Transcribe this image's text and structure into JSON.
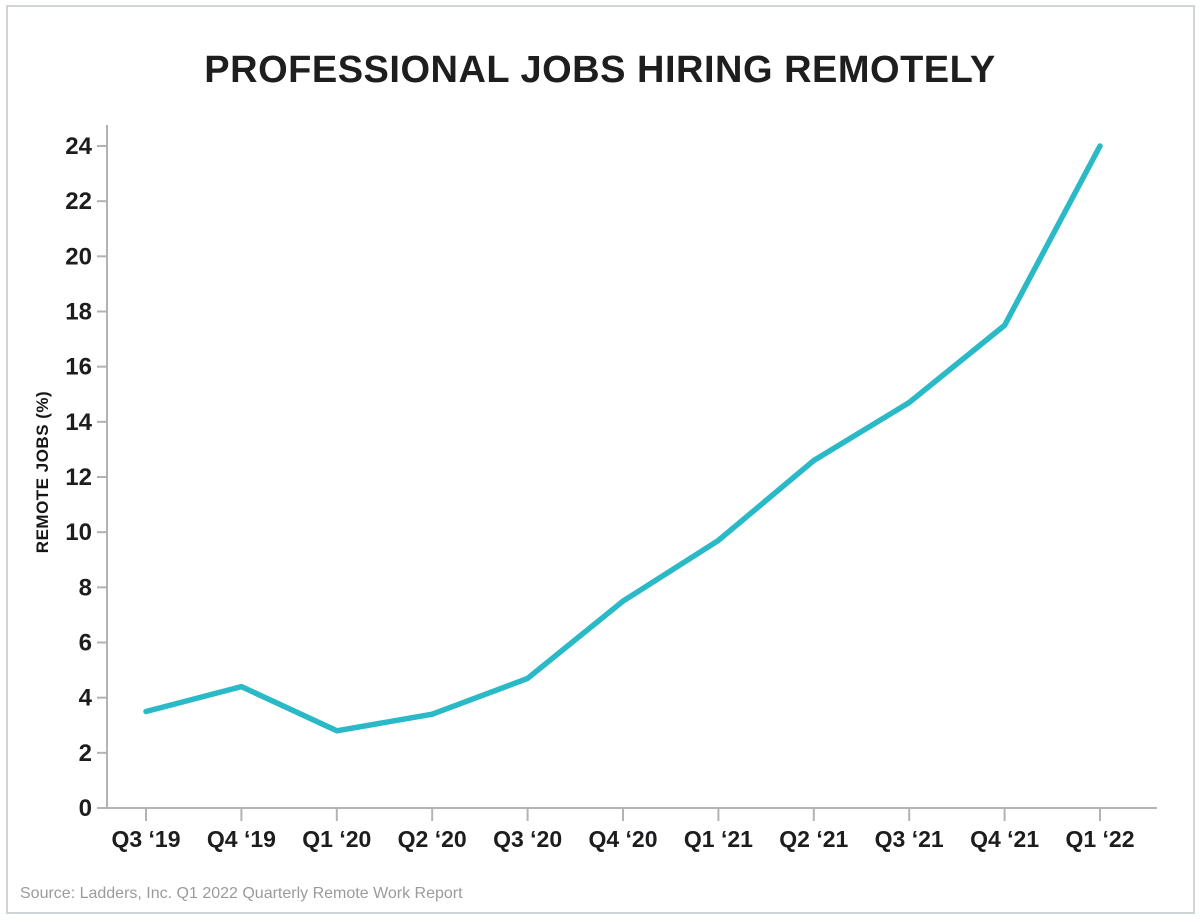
{
  "header": {
    "title": "PROFESSIONAL JOBS HIRING REMOTELY"
  },
  "footer": {
    "source": "Source: Ladders, Inc. Q1 2022 Quarterly Remote Work Report"
  },
  "chart_data": {
    "type": "line",
    "title": "PROFESSIONAL JOBS HIRING REMOTELY",
    "categories": [
      "Q3 ‘19",
      "Q4 ‘19",
      "Q1 ‘20",
      "Q2 ‘20",
      "Q3 ‘20",
      "Q4 ‘20",
      "Q1 ‘21",
      "Q2 ‘21",
      "Q3 ‘21",
      "Q4 ‘21",
      "Q1 ‘22"
    ],
    "values": [
      3.5,
      4.4,
      2.8,
      3.4,
      4.7,
      7.5,
      9.7,
      12.6,
      14.7,
      17.5,
      24.0
    ],
    "xlabel": "",
    "ylabel": "REMOTE JOBS (%)",
    "ylim": [
      0,
      24
    ],
    "ytick_step": 2,
    "grid": false,
    "legend": false,
    "line_color": "#2ab9c6",
    "axis_color": "#b3b3b3",
    "tick_text_color": "#1d1d1f",
    "title_color": "#1e1e1e",
    "source_color": "#9b9b9b"
  }
}
